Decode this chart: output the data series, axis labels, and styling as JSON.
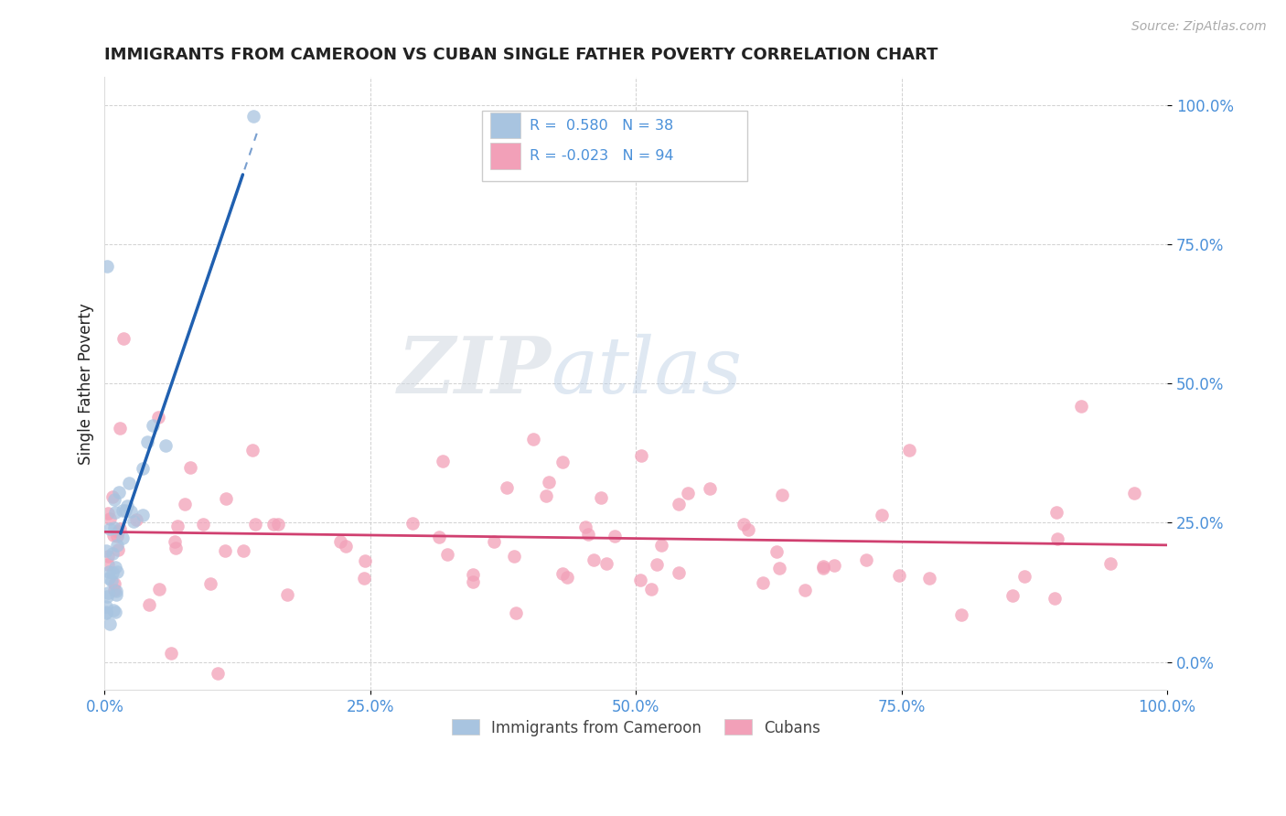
{
  "title": "IMMIGRANTS FROM CAMEROON VS CUBAN SINGLE FATHER POVERTY CORRELATION CHART",
  "source": "Source: ZipAtlas.com",
  "ylabel": "Single Father Poverty",
  "xlim": [
    0.0,
    1.0
  ],
  "ylim": [
    -0.05,
    1.05
  ],
  "xticks": [
    0.0,
    0.25,
    0.5,
    0.75,
    1.0
  ],
  "yticks": [
    0.0,
    0.25,
    0.5,
    0.75,
    1.0
  ],
  "xtick_labels": [
    "0.0%",
    "25.0%",
    "50.0%",
    "75.0%",
    "100.0%"
  ],
  "ytick_labels": [
    "0.0%",
    "25.0%",
    "50.0%",
    "75.0%",
    "100.0%"
  ],
  "cameroon_R": 0.58,
  "cameroon_N": 38,
  "cuban_R": -0.023,
  "cuban_N": 94,
  "cameroon_color": "#a8c4e0",
  "cuban_color": "#f2a0b8",
  "cameroon_line_color": "#2060b0",
  "cuban_line_color": "#d04070",
  "legend_label_cameroon": "Immigrants from Cameroon",
  "legend_label_cuban": "Cubans",
  "watermark_zip": "ZIP",
  "watermark_atlas": "atlas",
  "background_color": "#ffffff",
  "grid_color": "#cccccc",
  "title_color": "#222222",
  "axis_color": "#4a90d9",
  "tick_color": "#4a90d9",
  "source_color": "#aaaaaa"
}
